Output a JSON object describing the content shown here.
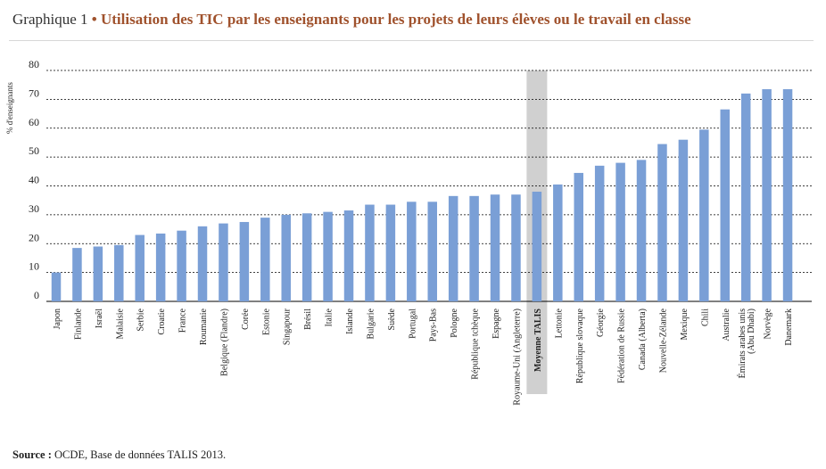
{
  "header": {
    "prefix": "Graphique 1",
    "bullet": "•",
    "title": "Utilisation des TIC par les enseignants pour les projets de leurs élèves ou le travail en classe"
  },
  "source": {
    "label": "Source :",
    "text": "OCDE, Base de données TALIS 2013."
  },
  "colors": {
    "bar": "#7a9fd6",
    "highlight_bg": "#d0d0d0",
    "grid": "#000000",
    "title_accent": "#a0522d"
  },
  "chart_data": {
    "type": "bar",
    "ylabel": "% d'enseignants",
    "ylim": [
      0,
      80
    ],
    "yticks": [
      0,
      10,
      20,
      30,
      40,
      50,
      60,
      70,
      80
    ],
    "grid": "dashed-horizontal",
    "highlight_category": "Moyenne TALIS",
    "categories": [
      "Japon",
      "Finlande",
      "Israël",
      "Malaisie",
      "Serbie",
      "Croatie",
      "France",
      "Roumanie",
      "Belgique (Flandre)",
      "Corée",
      "Estonie",
      "Singapour",
      "Brésil",
      "Italie",
      "Islande",
      "Bulgarie",
      "Suède",
      "Portugal",
      "Pays-Bas",
      "Pologne",
      "République tchèque",
      "Espagne",
      "Royaume-Uni (Angleterre)",
      "Moyenne TALIS",
      "Lettonie",
      "République slovaque",
      "Géorgie",
      "Fédération de Russie",
      "Canada (Alberta)",
      "Nouvelle-Zélande",
      "Mexique",
      "Chili",
      "Australie",
      "Émirats arabes unis (Abu Dhabi)",
      "Norvège",
      "Danemark"
    ],
    "category_lines": [
      [
        "Japon"
      ],
      [
        "Finlande"
      ],
      [
        "Israël"
      ],
      [
        "Malaisie"
      ],
      [
        "Serbie"
      ],
      [
        "Croatie"
      ],
      [
        "France"
      ],
      [
        "Roumanie"
      ],
      [
        "Belgique (Flandre)"
      ],
      [
        "Corée"
      ],
      [
        "Estonie"
      ],
      [
        "Singapour"
      ],
      [
        "Brésil"
      ],
      [
        "Italie"
      ],
      [
        "Islande"
      ],
      [
        "Bulgarie"
      ],
      [
        "Suède"
      ],
      [
        "Portugal"
      ],
      [
        "Pays-Bas"
      ],
      [
        "Pologne"
      ],
      [
        "République tchèque"
      ],
      [
        "Espagne"
      ],
      [
        "Royaume-Uni (Angleterre)"
      ],
      [
        "Moyenne TALIS"
      ],
      [
        "Lettonie"
      ],
      [
        "République slovaque"
      ],
      [
        "Géorgie"
      ],
      [
        "Fédération de Russie"
      ],
      [
        "Canada (Alberta)"
      ],
      [
        "Nouvelle-Zélande"
      ],
      [
        "Mexique"
      ],
      [
        "Chili"
      ],
      [
        "Australie"
      ],
      [
        "Émirats arabes unis",
        "(Abu Dhabi)"
      ],
      [
        "Norvège"
      ],
      [
        "Danemark"
      ]
    ],
    "values": [
      10,
      18.5,
      19,
      19.5,
      23,
      23.5,
      24.5,
      26,
      27,
      27.5,
      29,
      30,
      30.5,
      31,
      31.5,
      33.5,
      33.5,
      34.5,
      34.5,
      36.5,
      36.5,
      37,
      37,
      38,
      40.5,
      44.5,
      47,
      48,
      49,
      54.5,
      56,
      59.5,
      66.5,
      72,
      73.5,
      73.5
    ]
  }
}
